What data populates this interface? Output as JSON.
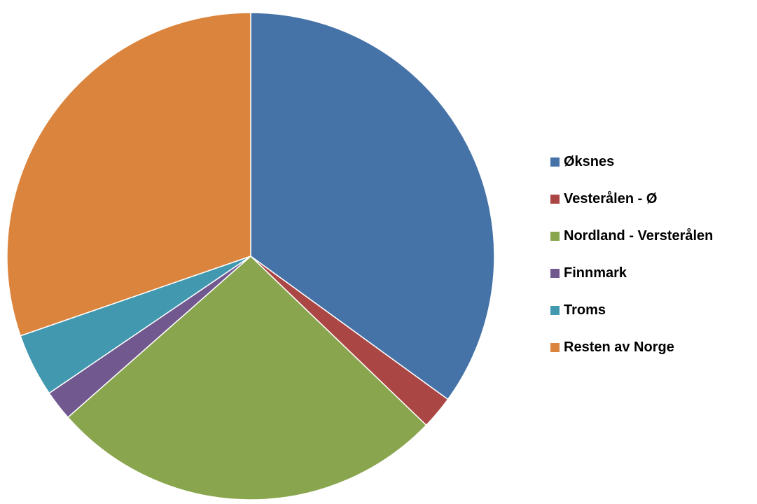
{
  "chart_data": {
    "type": "pie",
    "title": "",
    "legend_position": "right",
    "slices": [
      {
        "label": "Øksnes",
        "value": 35.0,
        "color": "#4572A7"
      },
      {
        "label": "Vesterålen - Ø",
        "value": 2.2,
        "color": "#AA4643"
      },
      {
        "label": "Nordland - Versterålen",
        "value": 26.3,
        "color": "#89A54E"
      },
      {
        "label": "Finnmark",
        "value": 2.0,
        "color": "#71588F"
      },
      {
        "label": "Troms",
        "value": 4.2,
        "color": "#4198AF"
      },
      {
        "label": "Resten av Norge",
        "value": 30.3,
        "color": "#DB843D"
      }
    ]
  }
}
